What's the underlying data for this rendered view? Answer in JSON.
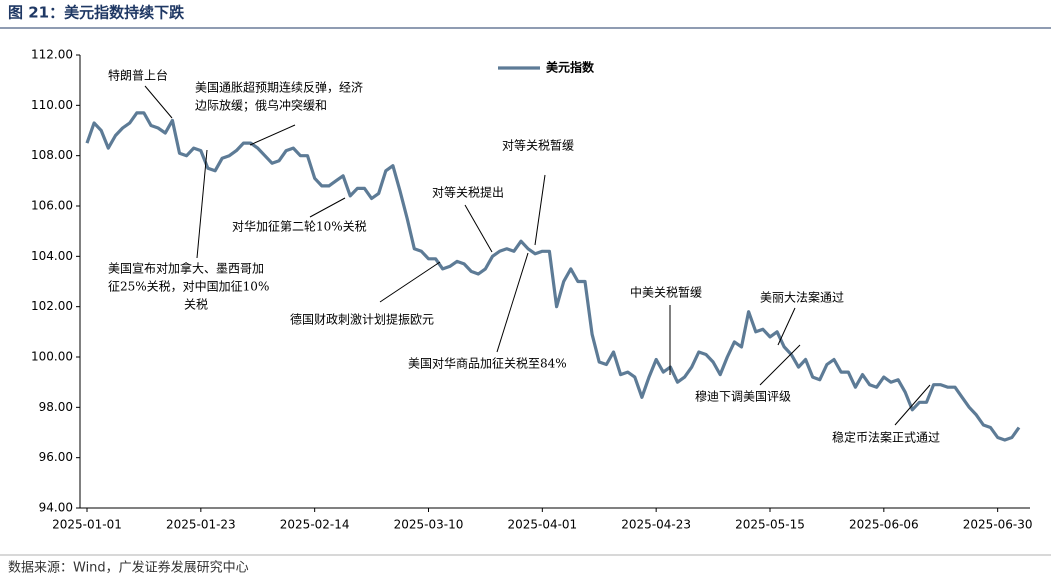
{
  "chart_data": {
    "type": "line",
    "title": "图 21：美元指数持续下跌",
    "source": "数据来源：Wind，广发证券发展研究中心",
    "categories": [
      "2025-01-01",
      null,
      null,
      null,
      null,
      null,
      null,
      null,
      null,
      null,
      null,
      null,
      null,
      null,
      null,
      null,
      "2025-01-23",
      null,
      null,
      null,
      null,
      null,
      null,
      null,
      null,
      null,
      null,
      null,
      null,
      null,
      null,
      null,
      "2025-02-14",
      null,
      null,
      null,
      null,
      null,
      null,
      null,
      null,
      null,
      null,
      null,
      null,
      null,
      null,
      null,
      "2025-03-10",
      null,
      null,
      null,
      null,
      null,
      null,
      null,
      null,
      null,
      null,
      null,
      null,
      null,
      null,
      null,
      "2025-04-01",
      null,
      null,
      null,
      null,
      null,
      null,
      null,
      null,
      null,
      null,
      null,
      null,
      null,
      null,
      null,
      "2025-04-23",
      null,
      null,
      null,
      null,
      null,
      null,
      null,
      null,
      null,
      null,
      null,
      null,
      null,
      null,
      null,
      "2025-05-15",
      null,
      null,
      null,
      null,
      null,
      null,
      null,
      null,
      null,
      null,
      null,
      null,
      null,
      null,
      null,
      "2025-06-06",
      null,
      null,
      null,
      null,
      null,
      null,
      null,
      null,
      null,
      null,
      null,
      null,
      null,
      null,
      null,
      "2025-06-30",
      null,
      null,
      null
    ],
    "series": [
      {
        "name": "美元指数",
        "color": "#5d7b96",
        "values": [
          108.5,
          109.3,
          109.0,
          108.3,
          108.8,
          109.1,
          109.3,
          109.7,
          109.7,
          109.2,
          109.1,
          108.9,
          109.4,
          108.1,
          108.0,
          108.3,
          108.2,
          107.5,
          107.4,
          107.9,
          108.0,
          108.2,
          108.5,
          108.5,
          108.3,
          108.0,
          107.7,
          107.8,
          108.2,
          108.3,
          108.0,
          108.0,
          107.1,
          106.8,
          106.8,
          107.0,
          107.2,
          106.4,
          106.7,
          106.7,
          106.3,
          106.5,
          107.4,
          107.6,
          106.6,
          105.5,
          104.3,
          104.2,
          103.9,
          103.9,
          103.5,
          103.6,
          103.8,
          103.7,
          103.4,
          103.3,
          103.5,
          104.0,
          104.2,
          104.3,
          104.2,
          104.6,
          104.3,
          104.1,
          104.2,
          104.2,
          102.0,
          103.0,
          103.5,
          103.0,
          103.0,
          100.9,
          99.8,
          99.7,
          100.2,
          99.3,
          99.4,
          99.2,
          98.4,
          99.2,
          99.9,
          99.4,
          99.6,
          99.0,
          99.2,
          99.6,
          100.2,
          100.1,
          99.8,
          99.3,
          100.0,
          100.6,
          100.4,
          101.8,
          101.0,
          101.1,
          100.8,
          101.0,
          100.4,
          100.1,
          99.6,
          99.9,
          99.2,
          99.1,
          99.7,
          99.9,
          99.4,
          99.4,
          98.8,
          99.3,
          98.9,
          98.8,
          99.2,
          99.0,
          99.1,
          98.6,
          97.9,
          98.2,
          98.2,
          98.9,
          98.9,
          98.8,
          98.8,
          98.4,
          98.0,
          97.7,
          97.3,
          97.2,
          96.8,
          96.7,
          96.8,
          97.2
        ]
      }
    ],
    "ylim": [
      94,
      112
    ],
    "yticks": [
      {
        "value": 94,
        "label": "94.00"
      },
      {
        "value": 96,
        "label": "96.00"
      },
      {
        "value": 98,
        "label": "98.00"
      },
      {
        "value": 100,
        "label": "100.00"
      },
      {
        "value": 102,
        "label": "102.00"
      },
      {
        "value": 104,
        "label": "104.00"
      },
      {
        "value": 106,
        "label": "106.00"
      },
      {
        "value": 108,
        "label": "108.00"
      },
      {
        "value": 110,
        "label": "110.00"
      },
      {
        "value": 112,
        "label": "112.00"
      }
    ],
    "grid": false,
    "legend": "top",
    "annotations": [
      [
        "特朗普上台"
      ],
      [
        "美国通胀超预期连续反弹，经济",
        "边际放缓；俄乌冲突缓和"
      ],
      [
        "对华加征第二轮10%关税"
      ],
      [
        "美国宣布对加拿大、墨西哥加",
        "征25%关税，对中国加征10%",
        "关税"
      ],
      [
        "德国财政刺激计划提振欧元"
      ],
      [
        "对等关税提出"
      ],
      [
        "对等关税暂缓"
      ],
      [
        "美国对华商品加征关税至84%"
      ],
      [
        "中美关税暂缓"
      ],
      [
        "美丽大法案通过"
      ],
      [
        "穆迪下调美国评级"
      ],
      [
        "稳定币法案正式通过"
      ]
    ]
  }
}
